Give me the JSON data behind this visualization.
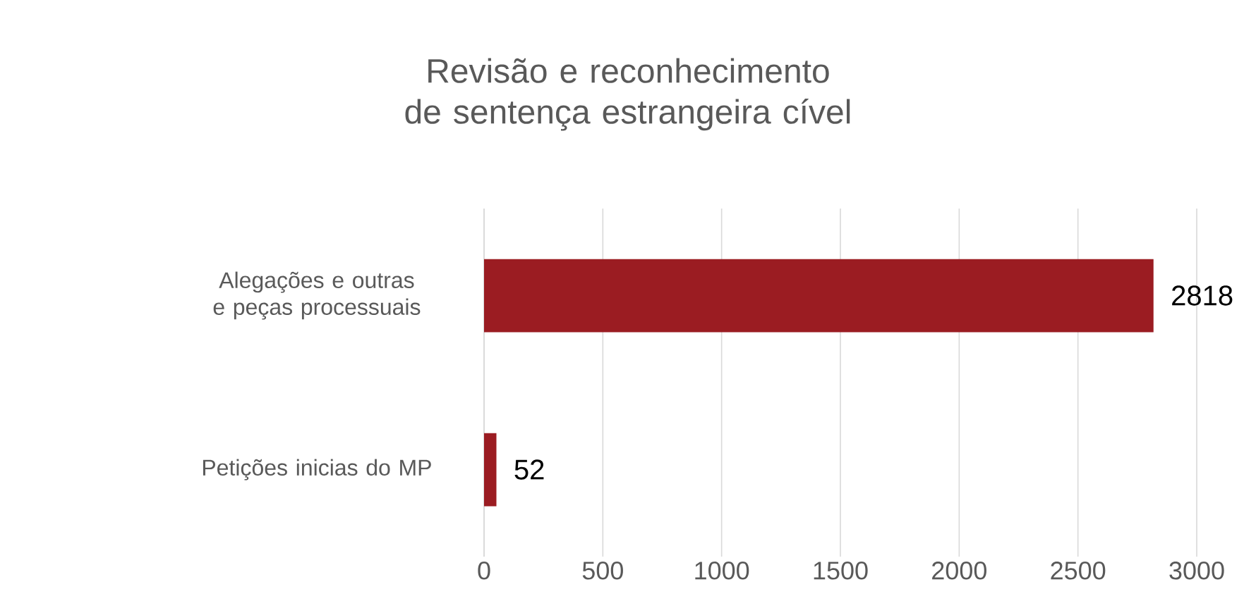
{
  "chart_data": {
    "type": "bar",
    "orientation": "horizontal",
    "title": "Revisão e reconhecimento de sentença estrangeira cível",
    "categories": [
      "Alegações e outras e peças processuais",
      "Petições inicias do MP"
    ],
    "values": [
      2818,
      52
    ],
    "color": "#9b1c22",
    "xlim": [
      0,
      3000
    ],
    "xticks": [
      0,
      500,
      1000,
      1500,
      2000,
      2500,
      3000
    ],
    "grid": "x",
    "data_labels": true
  }
}
